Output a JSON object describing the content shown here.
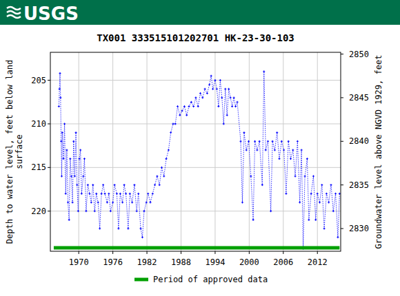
{
  "logo": "USGS",
  "chart_data": {
    "type": "line",
    "title": "TX001 333515101202701 HK-23-30-103",
    "ylabel": [
      "Depth to water level, feet below land",
      "surface"
    ],
    "y2label": "Groundwater level above NGVD 1929, feet",
    "xlim": [
      1965,
      2016.1
    ],
    "xticks": [
      1970,
      1976,
      1982,
      1988,
      1994,
      2000,
      2006,
      2012
    ],
    "ylim": [
      224.6,
      201.8
    ],
    "yticks": [
      205,
      210,
      215,
      220
    ],
    "y2lim": [
      2827.4,
      2850.2
    ],
    "y2ticks": [
      2830,
      2835,
      2840,
      2845,
      2850
    ],
    "grid": true,
    "legend": "bottom",
    "series": [
      {
        "color": "#0000ff",
        "marker": "plus",
        "line_style": "dotted",
        "x": [
          1966.5,
          1966.6,
          1966.7,
          1966.8,
          1966.9,
          1967.0,
          1967.1,
          1967.3,
          1967.5,
          1967.7,
          1967.9,
          1968.1,
          1968.3,
          1968.5,
          1968.7,
          1968.9,
          1969.1,
          1969.3,
          1969.5,
          1969.7,
          1969.9,
          1970.1,
          1970.3,
          1970.5,
          1970.8,
          1971.0,
          1971.3,
          1971.6,
          1971.9,
          1972.2,
          1972.5,
          1972.8,
          1973.1,
          1973.4,
          1973.7,
          1974.0,
          1974.3,
          1974.6,
          1975.0,
          1975.3,
          1975.6,
          1976.0,
          1976.3,
          1976.7,
          1977.0,
          1977.3,
          1977.7,
          1978.0,
          1978.3,
          1978.7,
          1979.0,
          1979.4,
          1979.8,
          1980.2,
          1980.5,
          1980.9,
          1981.2,
          1981.5,
          1981.9,
          1982.2,
          1982.6,
          1983.0,
          1983.4,
          1983.8,
          1984.2,
          1984.6,
          1985.0,
          1985.4,
          1985.8,
          1986.2,
          1986.6,
          1987.0,
          1987.4,
          1987.8,
          1988.2,
          1988.6,
          1989.0,
          1989.4,
          1989.8,
          1990.2,
          1990.6,
          1991.0,
          1991.4,
          1991.8,
          1992.2,
          1992.6,
          1993.0,
          1993.3,
          1993.6,
          1994.0,
          1994.3,
          1994.6,
          1994.9,
          1995.2,
          1995.5,
          1995.8,
          1996.1,
          1996.4,
          1996.7,
          1997.0,
          1997.3,
          1997.6,
          1997.9,
          1998.5,
          1998.8,
          1999.1,
          1999.5,
          1999.9,
          2000.3,
          2000.7,
          2001.0,
          2001.4,
          2001.8,
          2002.3,
          2002.6,
          2002.9,
          2003.3,
          2003.8,
          2004.1,
          2004.5,
          2004.9,
          2005.3,
          2005.7,
          2006.1,
          2006.5,
          2006.9,
          2007.3,
          2007.7,
          2008.1,
          2008.5,
          2008.9,
          2009.2,
          2009.5,
          2009.8,
          2010.2,
          2010.5,
          2010.9,
          2011.3,
          2011.7,
          2012.0,
          2012.4,
          2012.8,
          2013.2,
          2013.6,
          2014.0,
          2014.4,
          2014.8,
          2015.2,
          2015.6,
          2015.9
        ],
        "values": [
          208,
          206,
          204.2,
          207,
          212,
          216,
          211,
          214,
          210,
          218,
          213,
          219,
          221,
          214,
          216,
          219,
          212,
          216,
          211,
          217,
          220,
          214,
          213,
          218,
          216,
          214,
          220,
          217,
          218,
          219,
          217,
          220,
          218,
          219,
          222,
          218,
          217,
          218,
          219,
          218,
          220,
          219,
          217,
          218,
          222,
          218,
          219,
          217,
          218,
          222,
          218,
          219,
          217,
          220,
          218,
          222,
          223,
          220,
          219,
          218,
          219,
          218,
          217,
          216,
          217,
          215,
          216,
          214,
          213,
          211,
          210,
          210,
          208,
          209,
          208.5,
          208,
          209,
          208,
          207.5,
          208,
          207,
          208,
          206.5,
          207,
          206,
          206.5,
          205.5,
          204.5,
          206,
          205,
          206,
          208,
          205,
          207,
          210,
          206,
          209,
          206,
          207,
          208,
          207,
          208,
          207.5,
          212,
          219,
          211,
          213,
          212,
          216,
          221,
          212,
          213,
          212,
          217,
          204,
          213,
          212,
          220,
          212,
          213,
          211,
          214,
          212,
          213,
          218,
          212,
          214,
          213,
          216,
          212,
          219,
          213,
          224.3,
          216,
          214,
          221,
          218,
          216,
          221,
          218,
          219,
          217,
          222,
          218,
          219,
          217,
          220,
          218,
          223,
          218
        ]
      },
      {
        "name": "Period of approved data",
        "color": "#00a000",
        "type": "band",
        "line_style": "solid",
        "x": [
          1965.6,
          2015.9
        ],
        "values": [
          224.2,
          224.2
        ]
      }
    ]
  }
}
